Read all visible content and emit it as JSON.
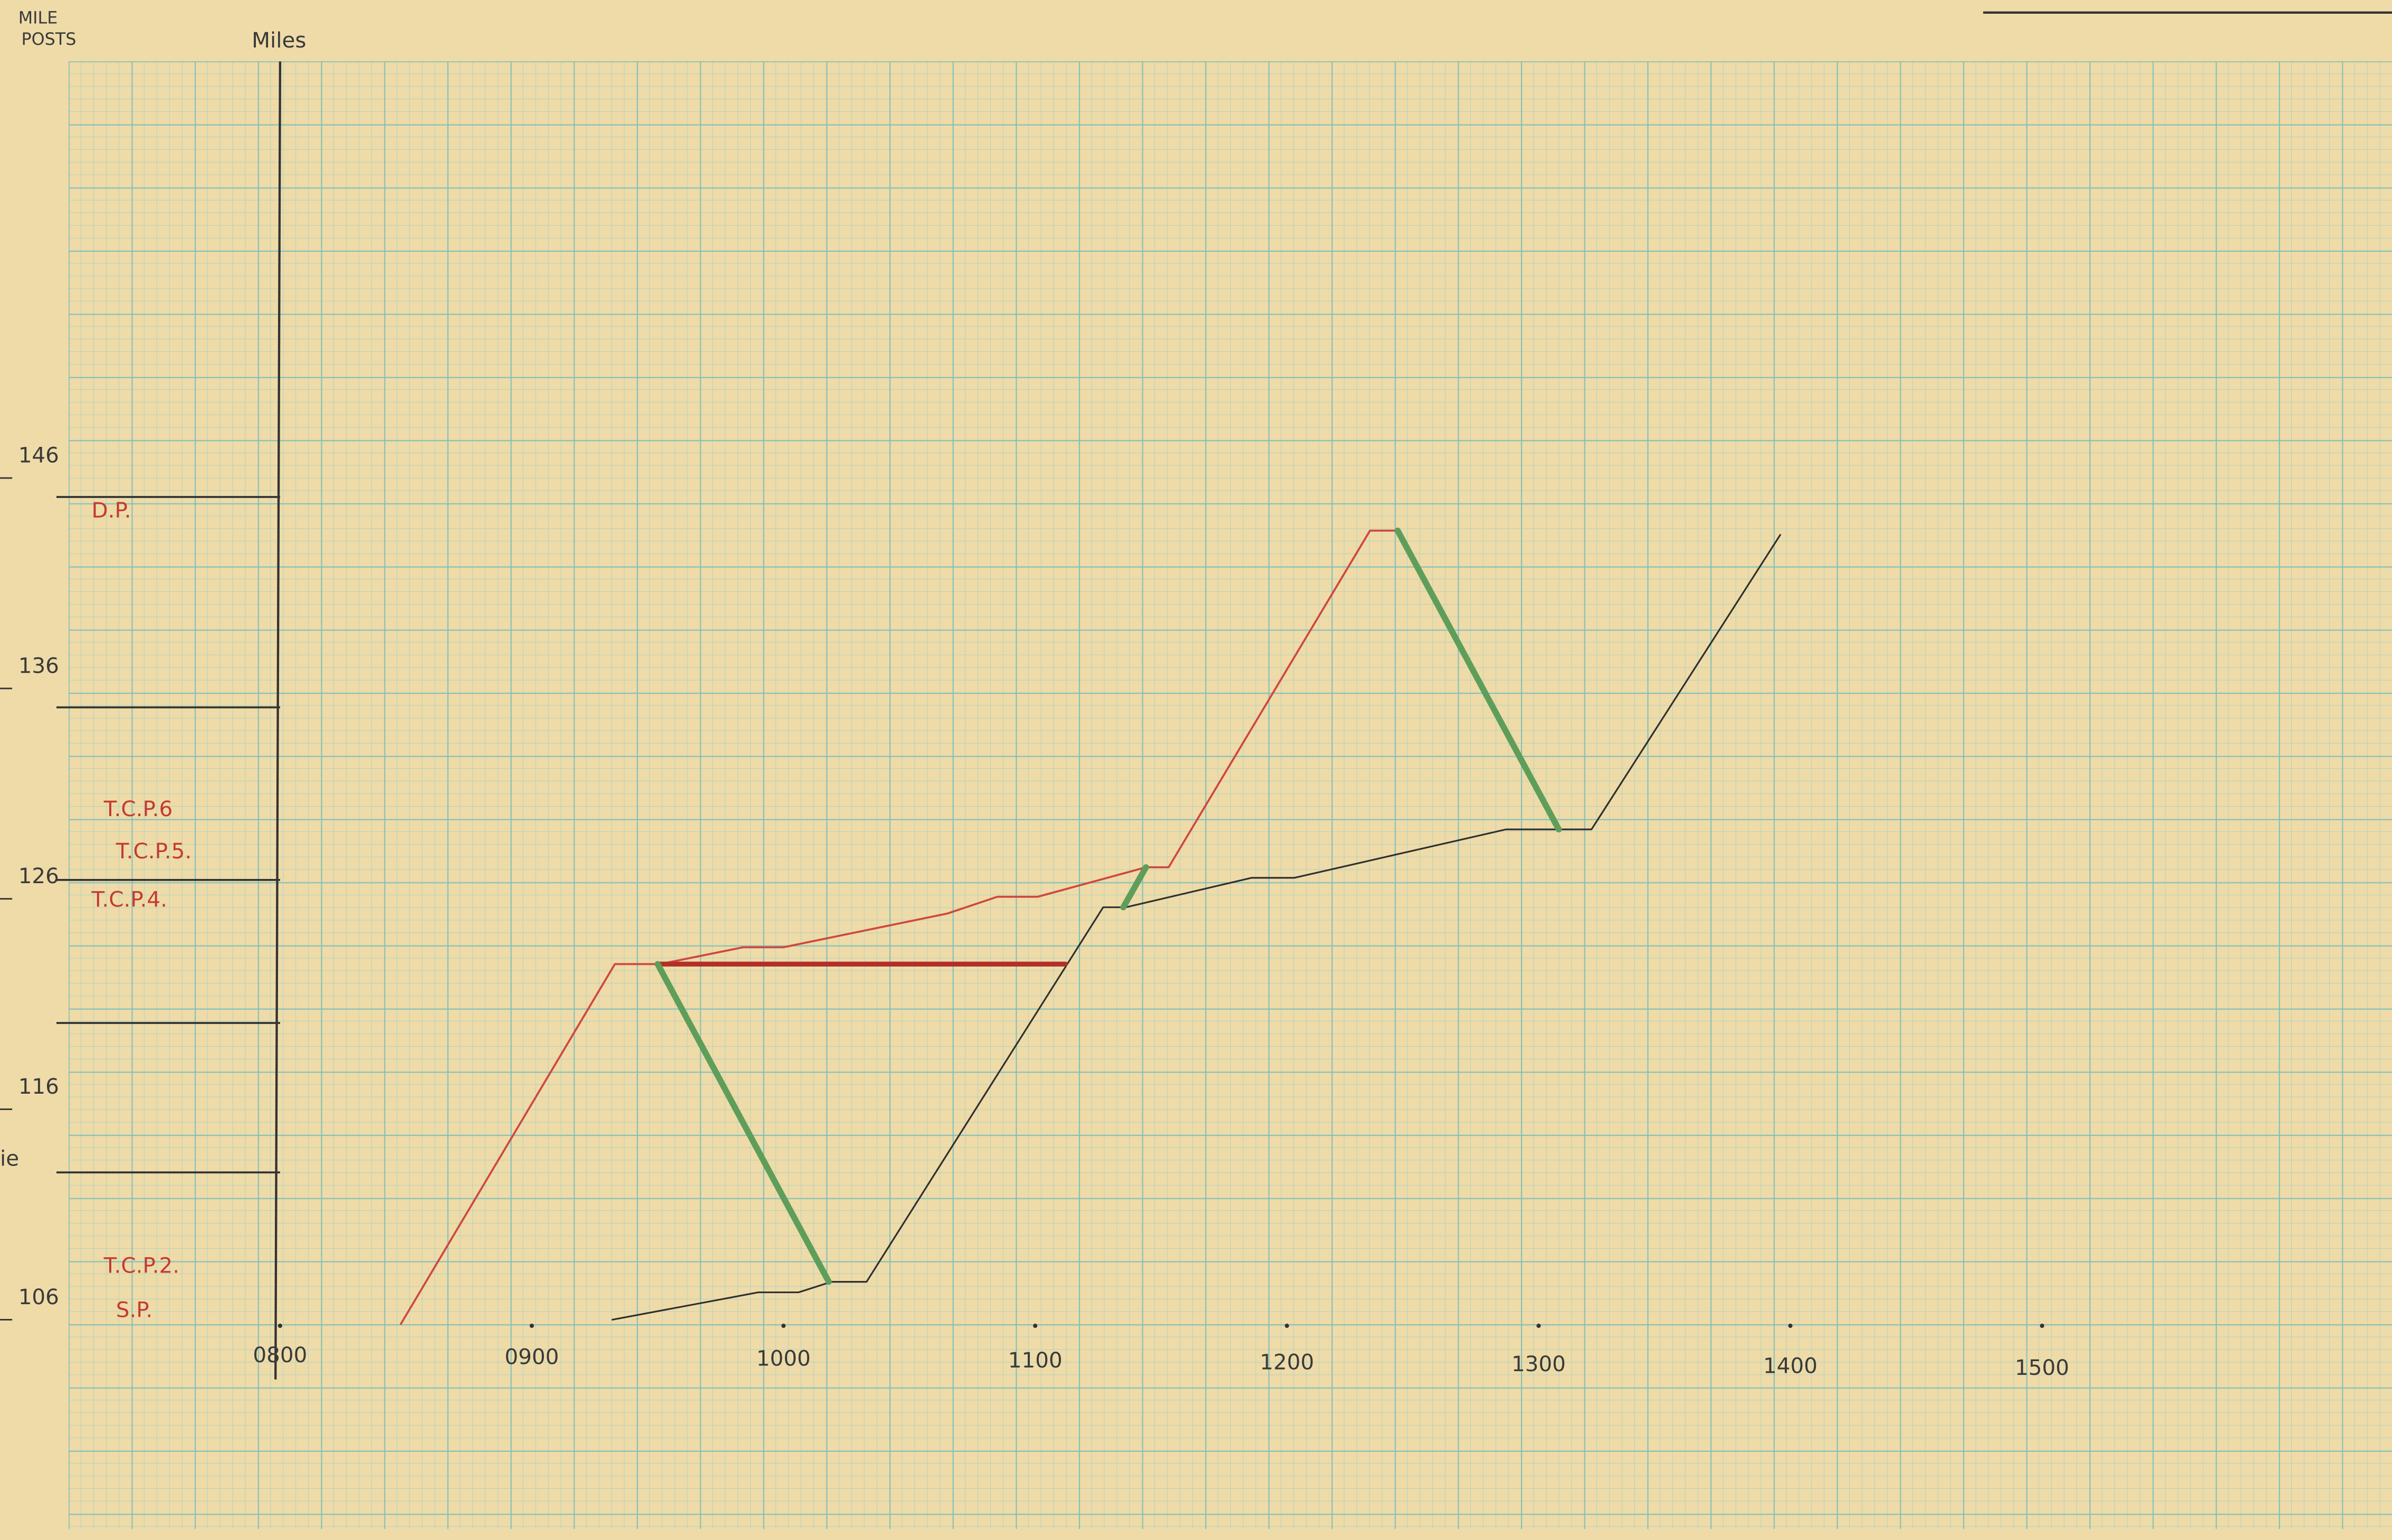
{
  "chart_data": {
    "type": "line",
    "header": [
      "MILE",
      "POSTS"
    ],
    "y_title": "Miles",
    "fragment": "ie",
    "xlim": [
      7.16,
      16.36
    ],
    "ylim": [
      96.2,
      165.8
    ],
    "xticks": [
      {
        "value": 8,
        "label": "0800"
      },
      {
        "value": 9,
        "label": "0900"
      },
      {
        "value": 10,
        "label": "1000"
      },
      {
        "value": 11,
        "label": "1100"
      },
      {
        "value": 12,
        "label": "1200"
      },
      {
        "value": 13,
        "label": "1300"
      },
      {
        "value": 14,
        "label": "1400"
      },
      {
        "value": 15,
        "label": "1500"
      }
    ],
    "yticks": [
      106,
      116,
      126,
      136,
      146
    ],
    "mile_lines": [
      145.1,
      135.1,
      126.9,
      120.1,
      113.0
    ],
    "checkpoints": [
      {
        "label": "D.P.",
        "mile": 144.4
      },
      {
        "label": "T.C.P.6",
        "mile": 130.2
      },
      {
        "label": "T.C.P.5.",
        "mile": 128.2
      },
      {
        "label": "T.C.P.4.",
        "mile": 125.9
      },
      {
        "label": "T.C.P.2.",
        "mile": 108.5
      },
      {
        "label": "S.P.",
        "mile": 106.4
      }
    ],
    "series": [
      {
        "color": "#d0473f",
        "width": 1.3,
        "x": [
          8.48,
          9.33,
          9.51,
          9.84,
          10.0,
          10.65,
          10.85,
          11.01,
          11.44,
          11.53,
          12.33,
          12.44
        ],
        "values": [
          105.8,
          122.9,
          122.9,
          123.7,
          123.7,
          125.3,
          126.1,
          126.1,
          127.5,
          127.5,
          143.5,
          143.5
        ]
      },
      {
        "color": "#2f2f2f",
        "width": 1.1,
        "x": [
          9.32,
          9.9,
          10.06,
          10.19,
          10.33,
          11.27,
          11.36,
          11.86,
          12.03,
          12.87,
          13.21,
          13.96
        ],
        "values": [
          106.0,
          107.3,
          107.3,
          107.8,
          107.8,
          125.6,
          125.6,
          127.0,
          127.0,
          129.3,
          129.3,
          143.3
        ]
      },
      {
        "color": "#b3302a",
        "width": 3.2,
        "x": [
          9.5,
          11.12
        ],
        "values": [
          122.9,
          122.9
        ]
      },
      {
        "color": "#5e9e5a",
        "width": 4,
        "x": [
          9.5,
          10.18,
          null,
          11.35,
          11.44,
          null,
          12.44,
          13.08
        ],
        "values": [
          122.9,
          107.8,
          null,
          125.6,
          127.5,
          null,
          143.5,
          129.3
        ]
      }
    ]
  }
}
